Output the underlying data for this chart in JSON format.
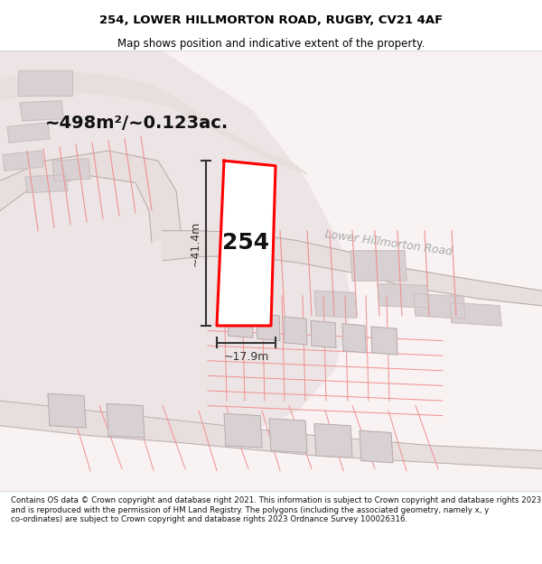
{
  "title": "254, LOWER HILLMORTON ROAD, RUGBY, CV21 4AF",
  "subtitle": "Map shows position and indicative extent of the property.",
  "footer": "Contains OS data © Crown copyright and database right 2021. This information is subject to Crown copyright and database rights 2023 and is reproduced with the permission of HM Land Registry. The polygons (including the associated geometry, namely x, y co-ordinates) are subject to Crown copyright and database rights 2023 Ordnance Survey 100026316.",
  "area_label": "~498m²/~0.123ac.",
  "width_label": "~17.9m",
  "height_label": "~41.4m",
  "road_label": "Lower Hillmorton Road",
  "plot_number": "254",
  "bg_color": "#f5f0f0",
  "road_polygon_color": "#e8e0e0",
  "building_fill": "#d8d0d0",
  "plot_outline_color": "#ff0000",
  "plot_fill_color": "#ffffff",
  "dim_line_color": "#333333",
  "road_label_color": "#aaaaaa",
  "title_color": "#000000",
  "map_bg": "#f9f4f4"
}
